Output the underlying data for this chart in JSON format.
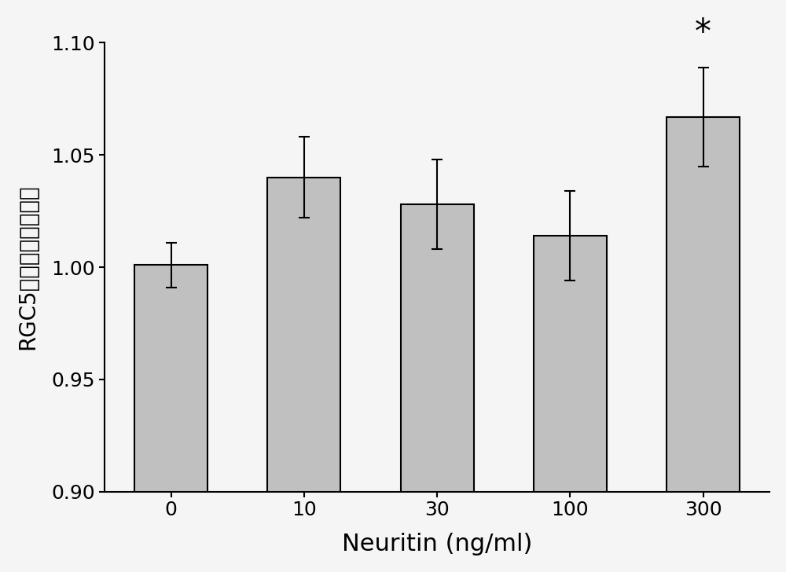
{
  "categories": [
    "0",
    "10",
    "30",
    "100",
    "300"
  ],
  "values": [
    1.001,
    1.04,
    1.028,
    1.014,
    1.067
  ],
  "errors": [
    0.01,
    0.018,
    0.02,
    0.02,
    0.022
  ],
  "bar_color": "#c0c0c0",
  "bar_edgecolor": "#000000",
  "bar_width": 0.55,
  "xlabel": "Neuritin (ng/ml)",
  "ylabel_line1": "RGC5存活率（标准化）",
  "ylim": [
    0.9,
    1.1
  ],
  "yticks": [
    0.9,
    0.95,
    1.0,
    1.05,
    1.1
  ],
  "xlabel_fontsize": 22,
  "ylabel_fontsize": 20,
  "tick_fontsize": 18,
  "asterisk_bar_index": 4,
  "asterisk_text": "*",
  "asterisk_fontsize": 30,
  "background_color": "#f5f5f5"
}
